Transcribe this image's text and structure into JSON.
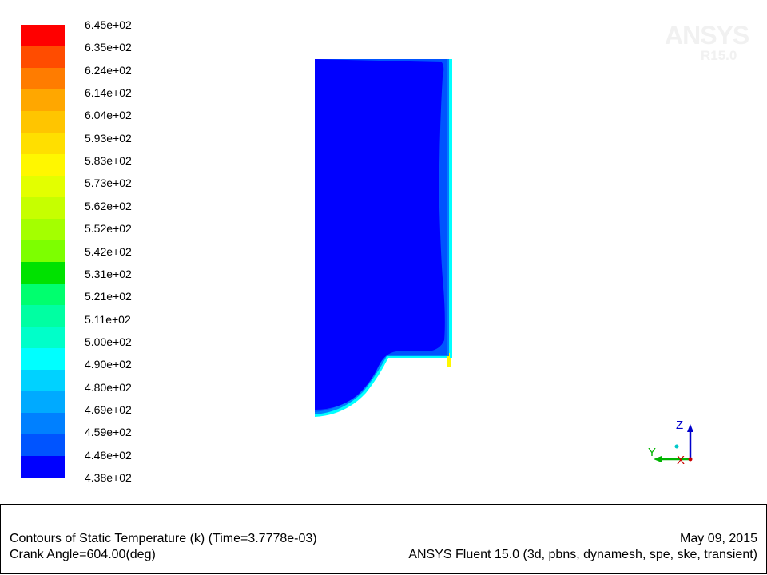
{
  "chart_data": {
    "type": "heatmap",
    "colorbar": {
      "labels": [
        "6.45e+02",
        "6.35e+02",
        "6.24e+02",
        "6.14e+02",
        "6.04e+02",
        "5.93e+02",
        "5.83e+02",
        "5.73e+02",
        "5.62e+02",
        "5.52e+02",
        "5.42e+02",
        "5.31e+02",
        "5.21e+02",
        "5.11e+02",
        "5.00e+02",
        "4.90e+02",
        "4.80e+02",
        "4.69e+02",
        "4.59e+02",
        "4.48e+02",
        "4.38e+02"
      ],
      "colors": [
        "#ff0000",
        "#ff4c00",
        "#ff7c00",
        "#ffa700",
        "#ffc500",
        "#ffdf00",
        "#fff700",
        "#e3ff00",
        "#c6ff00",
        "#a4ff00",
        "#7dff00",
        "#00e200",
        "#00ff6e",
        "#00ffa2",
        "#00ffc9",
        "#00ffff",
        "#00d2ff",
        "#00aaff",
        "#0080ff",
        "#0054ff",
        "#0000ff"
      ],
      "min": 438,
      "max": 645
    },
    "field_colors": {
      "core": "#0000ff",
      "layer1": "#0054ff",
      "layer2": "#0080ff",
      "wall": "#00ffff",
      "hot_edge": "#fff700"
    }
  },
  "watermark": {
    "brand": "ANSYS",
    "version": "R15.0"
  },
  "axes": {
    "z": "Z",
    "y": "Y",
    "x": "X"
  },
  "footer": {
    "title": "Contours of Static Temperature (k)  (Time=3.7778e-03)",
    "subtitle": "Crank Angle=604.00(deg)",
    "date": "May 09, 2015",
    "solver": "ANSYS Fluent 15.0 (3d, pbns, dynamesh, spe, ske, transient)"
  }
}
